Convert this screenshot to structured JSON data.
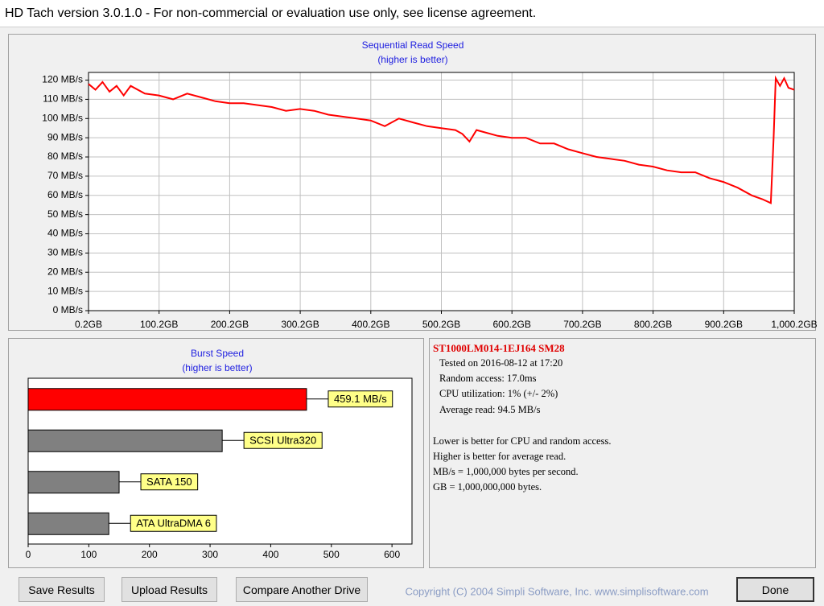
{
  "window": {
    "title": "HD Tach version 3.0.1.0  - For non-commercial or evaluation use only, see license agreement."
  },
  "chart_data": [
    {
      "type": "line",
      "title": "Sequential Read Speed",
      "subtitle": "(higher is better)",
      "x": [
        0.2,
        10,
        20,
        30,
        40,
        50,
        60,
        80,
        100,
        120,
        140,
        160,
        180,
        200,
        220,
        240,
        260,
        280,
        300,
        320,
        340,
        360,
        380,
        400,
        420,
        440,
        460,
        480,
        500,
        520,
        530,
        540,
        550,
        560,
        580,
        600,
        620,
        640,
        660,
        680,
        700,
        720,
        740,
        760,
        780,
        800,
        820,
        840,
        860,
        880,
        900,
        920,
        940,
        955,
        967,
        971,
        974,
        980,
        986,
        992,
        1000.2
      ],
      "values": [
        118,
        115,
        119,
        114,
        117,
        112,
        117,
        113,
        112,
        110,
        113,
        111,
        109,
        108,
        108,
        107,
        106,
        104,
        105,
        104,
        102,
        101,
        100,
        99,
        96,
        100,
        98,
        96,
        95,
        94,
        92,
        88,
        94,
        93,
        91,
        90,
        90,
        87,
        87,
        84,
        82,
        80,
        79,
        78,
        76,
        75,
        73,
        72,
        72,
        69,
        67,
        64,
        60,
        58,
        56,
        90,
        121,
        117,
        121,
        116,
        115
      ],
      "color": "#ff0000",
      "xlim": [
        0.2,
        1000.2
      ],
      "xticks": [
        {
          "value": 0.2,
          "label": "0.2GB"
        },
        {
          "value": 100.2,
          "label": "100.2GB"
        },
        {
          "value": 200.2,
          "label": "200.2GB"
        },
        {
          "value": 300.2,
          "label": "300.2GB"
        },
        {
          "value": 400.2,
          "label": "400.2GB"
        },
        {
          "value": 500.2,
          "label": "500.2GB"
        },
        {
          "value": 600.2,
          "label": "600.2GB"
        },
        {
          "value": 700.2,
          "label": "700.2GB"
        },
        {
          "value": 800.2,
          "label": "800.2GB"
        },
        {
          "value": 900.2,
          "label": "900.2GB"
        },
        {
          "value": 1000.2,
          "label": "1,000.2GB"
        }
      ],
      "ylim": [
        0,
        124
      ],
      "yticks": [
        {
          "value": 0,
          "label": "0 MB/s"
        },
        {
          "value": 10,
          "label": "10 MB/s"
        },
        {
          "value": 20,
          "label": "20 MB/s"
        },
        {
          "value": 30,
          "label": "30 MB/s"
        },
        {
          "value": 40,
          "label": "40 MB/s"
        },
        {
          "value": 50,
          "label": "50 MB/s"
        },
        {
          "value": 60,
          "label": "60 MB/s"
        },
        {
          "value": 70,
          "label": "70 MB/s"
        },
        {
          "value": 80,
          "label": "80 MB/s"
        },
        {
          "value": 90,
          "label": "90 MB/s"
        },
        {
          "value": 100,
          "label": "100 MB/s"
        },
        {
          "value": 110,
          "label": "110 MB/s"
        },
        {
          "value": 120,
          "label": "120 MB/s"
        }
      ],
      "grid": true
    },
    {
      "type": "hbar",
      "title": "Burst Speed",
      "subtitle": "(higher is better)",
      "bars": [
        {
          "label": "459.1 MB/s",
          "value": 459.1,
          "color": "#ff0000"
        },
        {
          "label": "SCSI Ultra320",
          "value": 320,
          "color": "#808080"
        },
        {
          "label": "SATA 150",
          "value": 150,
          "color": "#808080"
        },
        {
          "label": "ATA UltraDMA 6",
          "value": 133,
          "color": "#808080"
        }
      ],
      "xlim": [
        0,
        633
      ],
      "xticks": [
        0,
        100,
        200,
        300,
        400,
        500,
        600
      ],
      "grid": false
    }
  ],
  "info": {
    "drive": "ST1000LM014-1EJ164 SM28",
    "results": [
      "Tested on 2016-08-12 at 17:20",
      "Random access: 17.0ms",
      "CPU utilization: 1% (+/- 2%)",
      "Average read: 94.5 MB/s"
    ],
    "notes": [
      "Lower is better for CPU and random access.",
      "Higher is better for average read.",
      "MB/s = 1,000,000 bytes per second.",
      "GB = 1,000,000,000 bytes."
    ]
  },
  "buttons": [
    "Save Results",
    "Upload Results",
    "Compare Another Drive",
    "Done"
  ],
  "copyright": "Copyright (C) 2004 Simpli Software, Inc. www.simplisoftware.com"
}
